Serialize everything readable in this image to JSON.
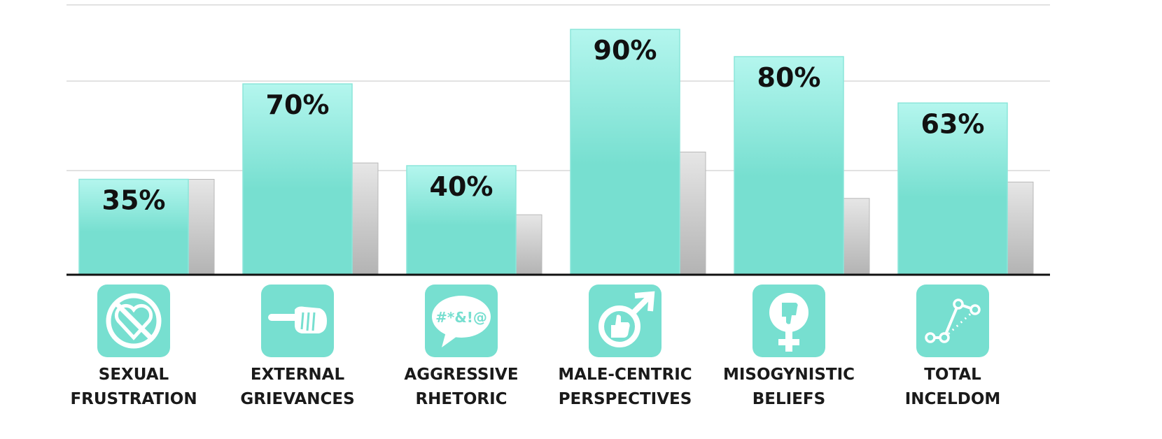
{
  "chart_data": {
    "type": "bar",
    "categories": [
      [
        "SEXUAL",
        "FRUSTRATION"
      ],
      [
        "EXTERNAL",
        "GRIEVANCES"
      ],
      [
        "AGGRESSIVE",
        "RHETORIC"
      ],
      [
        "MALE-CENTRIC",
        "PERSPECTIVES"
      ],
      [
        "MISOGYNISTIC",
        "BELIEFS"
      ],
      [
        "TOTAL",
        "INCELDOM"
      ]
    ],
    "series": [
      {
        "values": [
          35,
          70,
          40,
          90,
          80,
          63
        ],
        "labels": [
          "35%",
          "70%",
          "40%",
          "90%",
          "80%",
          "63%"
        ],
        "color": "#77dfd0"
      },
      {
        "values": [
          35,
          41,
          22,
          45,
          28,
          34
        ],
        "color": "#c8c8c8"
      }
    ],
    "ylim": [
      0,
      100
    ],
    "grid": true,
    "icons": [
      "no-love-heart-icon",
      "pointing-finger-icon",
      "swear-speech-bubble-icon",
      "male-thumbs-up-icon",
      "female-thumbs-down-icon",
      "line-graph-icon"
    ],
    "colors": {
      "accent": "#77dfd0",
      "accent_light": "#b4f6ee",
      "gray_bar": "#c8c8c8",
      "axis": "#111111",
      "grid": "#d9d9d9",
      "icon_bg": "#77dfd0"
    }
  }
}
